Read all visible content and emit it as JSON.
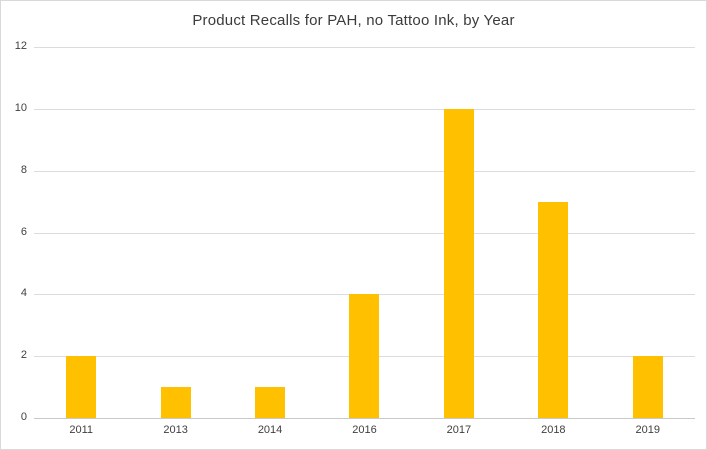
{
  "chart_data": {
    "type": "bar",
    "title": "Product Recalls for PAH, no Tattoo Ink, by Year",
    "categories": [
      "2011",
      "2013",
      "2014",
      "2016",
      "2017",
      "2018",
      "2019"
    ],
    "values": [
      2,
      1,
      1,
      4,
      10,
      7,
      2
    ],
    "xlabel": "",
    "ylabel": "",
    "ylim": [
      0,
      12
    ],
    "yticks": [
      0,
      2,
      4,
      6,
      8,
      10,
      12
    ],
    "grid": "horizontal",
    "legend": "none",
    "bar_color": "#FFC000",
    "gridline_color": "#dcdcdc",
    "frame_border_color": "#d9d9d9",
    "text_color": "#404040"
  }
}
